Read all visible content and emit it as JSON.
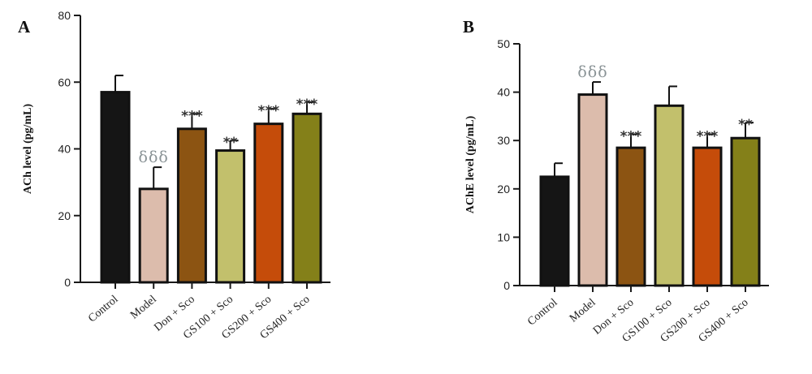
{
  "colors": {
    "axis": "#1a1a1a",
    "bar_stroke": "#111111",
    "significance": "#333333",
    "delta": "#8a9396"
  },
  "chart_data": [
    {
      "panel": "A",
      "type": "bar",
      "title": "",
      "xlabel": "",
      "ylabel": "ACh level (pg/mL)",
      "ylim": [
        0,
        80
      ],
      "yticks": [
        0,
        20,
        40,
        60,
        80
      ],
      "categories": [
        "Control",
        "Model",
        "Don + Sco",
        "GS100 + Sco",
        "GS200 + Sco",
        "GS400 + Sco"
      ],
      "values": [
        57,
        28,
        46,
        39.5,
        47.5,
        50.5
      ],
      "errors": [
        5,
        6.5,
        4.5,
        3,
        4.5,
        3.5
      ],
      "bar_colors": [
        "#151515",
        "#dcbcac",
        "#8c5412",
        "#c2c06c",
        "#c54c0a",
        "#848019"
      ],
      "significance": [
        "",
        "δδδ",
        "***",
        "**",
        "***",
        "***"
      ],
      "grid": false,
      "legend": "none"
    },
    {
      "panel": "B",
      "type": "bar",
      "title": "",
      "xlabel": "",
      "ylabel": "AChE level (pg/mL)",
      "ylim": [
        0,
        50
      ],
      "yticks": [
        0,
        10,
        20,
        30,
        40,
        50
      ],
      "categories": [
        "Control",
        "Model",
        "Don + Sco",
        "GS100 + Sco",
        "GS200 + Sco",
        "GS400 + Sco"
      ],
      "values": [
        22.5,
        39.5,
        28.5,
        37.2,
        28.5,
        30.5
      ],
      "errors": [
        2.8,
        2.6,
        2.8,
        4.0,
        2.8,
        3.2
      ],
      "bar_colors": [
        "#151515",
        "#dcbcac",
        "#8c5412",
        "#c2c06c",
        "#c54c0a",
        "#848019"
      ],
      "significance": [
        "",
        "δδδ",
        "***",
        "",
        "***",
        "**"
      ],
      "grid": false,
      "legend": "none"
    }
  ]
}
